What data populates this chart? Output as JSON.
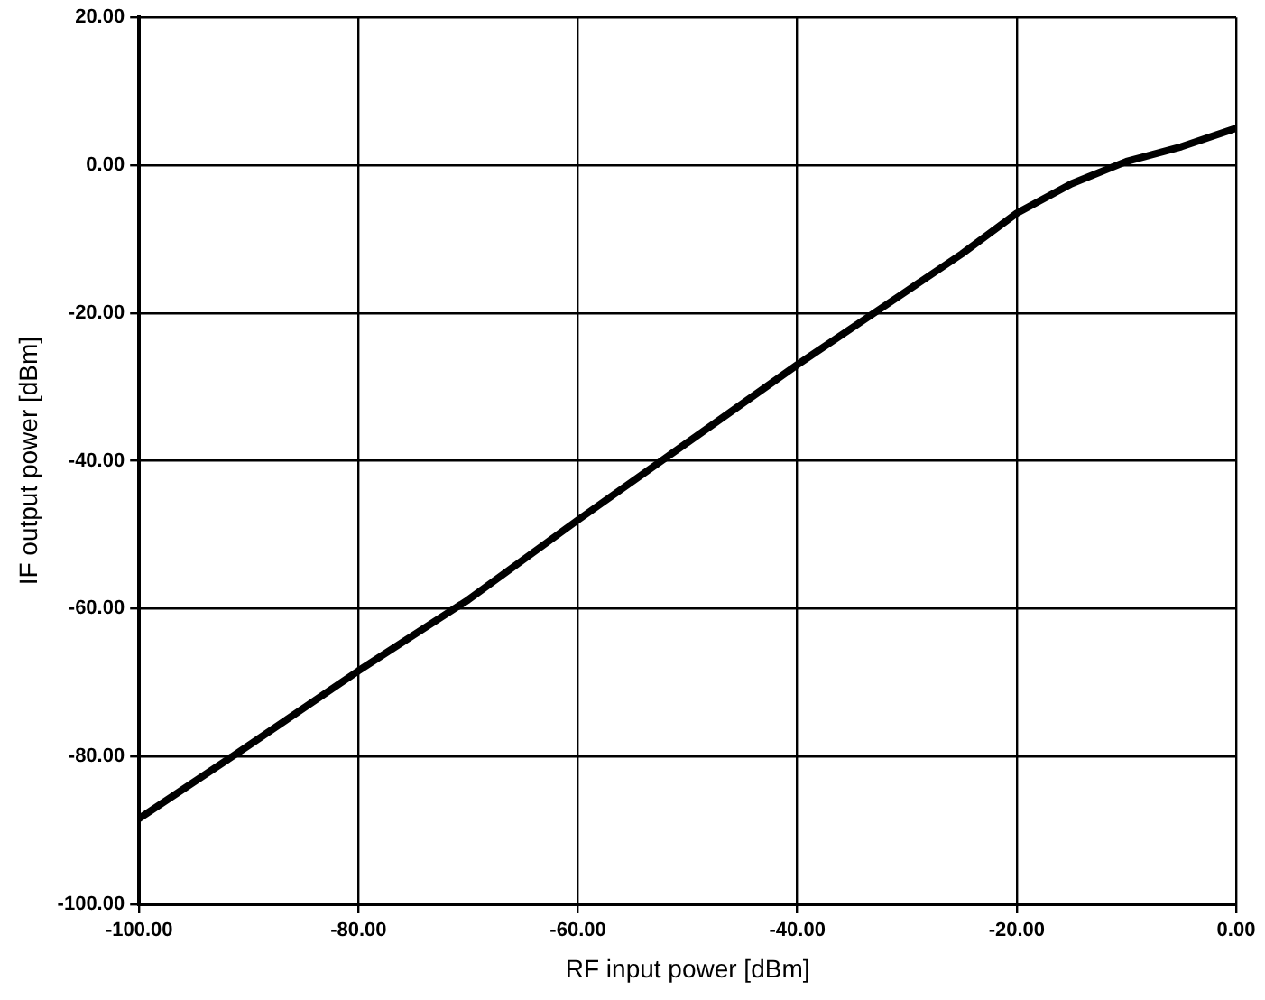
{
  "chart_data": {
    "type": "line",
    "xlabel": "RF input power [dBm]",
    "ylabel": "IF output power [dBm]",
    "x": [
      -100,
      -90,
      -80,
      -70,
      -60,
      -50,
      -40,
      -30,
      -25,
      -20,
      -15,
      -10,
      -5,
      0
    ],
    "series": [
      {
        "color": "#000000",
        "values": [
          -88.4,
          -78.5,
          -68.4,
          -58.8,
          -48,
          -37.5,
          -27,
          -17,
          -12,
          -6.5,
          -2.5,
          0.5,
          2.5,
          5
        ]
      }
    ],
    "xlim": [
      -100,
      0
    ],
    "ylim": [
      -100,
      20
    ],
    "xticks": [
      {
        "value": -100,
        "label": "-100.00"
      },
      {
        "value": -80,
        "label": "-80.00"
      },
      {
        "value": -60,
        "label": "-60.00"
      },
      {
        "value": -40,
        "label": "-40.00"
      },
      {
        "value": -20,
        "label": "-20.00"
      },
      {
        "value": 0,
        "label": "0.00"
      }
    ],
    "yticks": [
      {
        "value": -100,
        "label": "-100.00"
      },
      {
        "value": -80,
        "label": "-80.00"
      },
      {
        "value": -60,
        "label": "-60.00"
      },
      {
        "value": -40,
        "label": "-40.00"
      },
      {
        "value": -20,
        "label": "-20.00"
      },
      {
        "value": 0,
        "label": "0.00"
      },
      {
        "value": 20,
        "label": "20.00"
      }
    ],
    "grid": true,
    "marker": "none",
    "line_style": "solid",
    "legend": false
  }
}
